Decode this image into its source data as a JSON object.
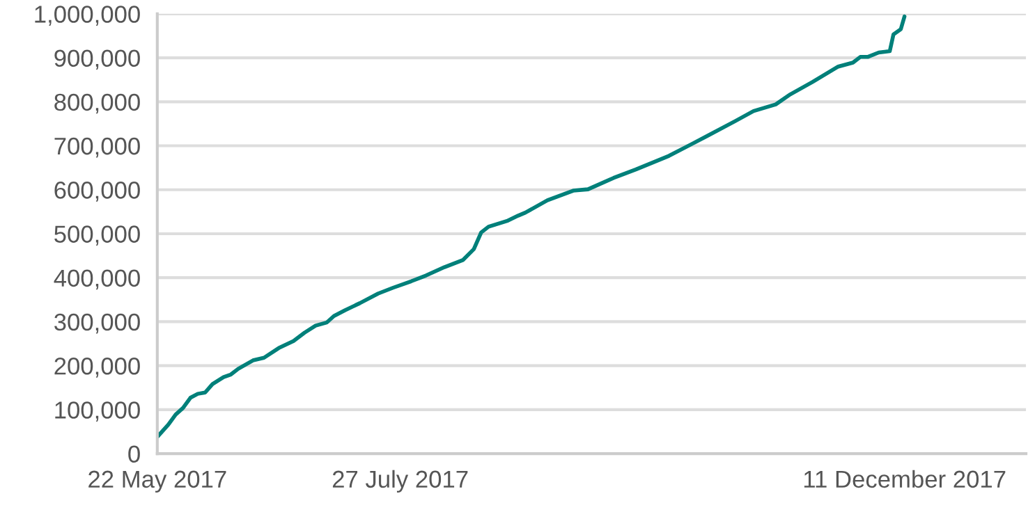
{
  "chart_data": {
    "type": "line",
    "x": [
      "2017-05-22",
      "2017-05-25",
      "2017-05-27",
      "2017-05-29",
      "2017-05-31",
      "2017-06-02",
      "2017-06-04",
      "2017-06-06",
      "2017-06-09",
      "2017-06-11",
      "2017-06-13",
      "2017-06-17",
      "2017-06-20",
      "2017-06-24",
      "2017-06-28",
      "2017-07-01",
      "2017-07-04",
      "2017-07-07",
      "2017-07-09",
      "2017-07-12",
      "2017-07-16",
      "2017-07-21",
      "2017-07-25",
      "2017-07-30",
      "2017-08-03",
      "2017-08-08",
      "2017-08-13",
      "2017-08-16",
      "2017-08-18",
      "2017-08-20",
      "2017-08-25",
      "2017-08-28",
      "2017-08-30",
      "2017-09-05",
      "2017-09-12",
      "2017-09-16",
      "2017-09-23",
      "2017-09-29",
      "2017-10-08",
      "2017-10-14",
      "2017-10-19",
      "2017-10-26",
      "2017-10-31",
      "2017-11-06",
      "2017-11-10",
      "2017-11-16",
      "2017-11-23",
      "2017-11-27",
      "2017-11-29",
      "2017-12-01",
      "2017-12-04",
      "2017-12-07",
      "2017-12-08",
      "2017-12-10",
      "2017-12-11"
    ],
    "series": [
      {
        "color": "#00807a",
        "values": [
          38000,
          66000,
          89000,
          104000,
          127000,
          136000,
          139000,
          158000,
          174000,
          180000,
          193000,
          212000,
          218000,
          240000,
          256000,
          275000,
          291000,
          298000,
          313000,
          326000,
          342000,
          364000,
          377000,
          392000,
          405000,
          424000,
          440000,
          465000,
          503000,
          516000,
          529000,
          541000,
          548000,
          576000,
          598000,
          601000,
          627000,
          646000,
          677000,
          703000,
          725000,
          756000,
          779000,
          794000,
          817000,
          845000,
          880000,
          889000,
          902000,
          902000,
          912000,
          915000,
          953000,
          965000,
          994000
        ]
      }
    ],
    "xlim": [
      "2017-05-22",
      "2018-01-13"
    ],
    "xticks": [
      {
        "value": "2017-05-22",
        "label": "22 May 2017"
      },
      {
        "value": "2017-07-27",
        "label": "27 July 2017"
      },
      {
        "value": "2017-12-11",
        "label": "11 December 2017"
      }
    ],
    "ylim": [
      0,
      1000000
    ],
    "yticks": [
      {
        "value": 0,
        "label": "0"
      },
      {
        "value": 100000,
        "label": "100,000"
      },
      {
        "value": 200000,
        "label": "200,000"
      },
      {
        "value": 300000,
        "label": "300,000"
      },
      {
        "value": 400000,
        "label": "400,000"
      },
      {
        "value": 500000,
        "label": "500,000"
      },
      {
        "value": 600000,
        "label": "600,000"
      },
      {
        "value": 700000,
        "label": "700,000"
      },
      {
        "value": 800000,
        "label": "800,000"
      },
      {
        "value": 900000,
        "label": "900,000"
      },
      {
        "value": 1000000,
        "label": "1,000,000"
      }
    ],
    "grid": "y",
    "legend": false
  }
}
